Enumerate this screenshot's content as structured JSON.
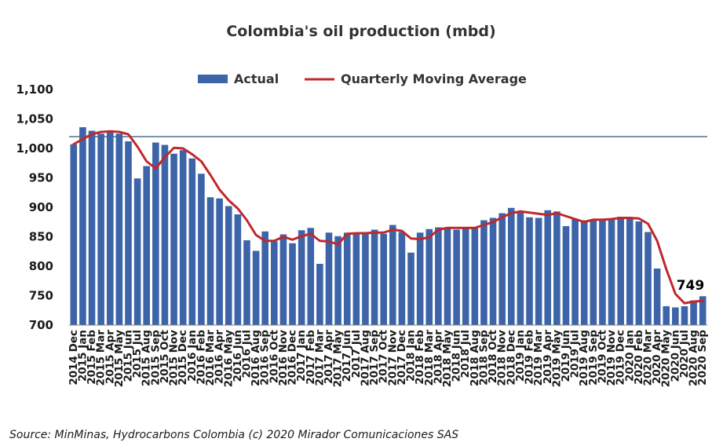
{
  "chart_data": {
    "type": "bar",
    "title": "Colombia's oil production (mbd)",
    "xlabel": "",
    "ylabel": "",
    "ylim": [
      700,
      1100
    ],
    "yticks": [
      700,
      750,
      800,
      850,
      900,
      950,
      1000,
      1050,
      1100
    ],
    "ytick_labels": [
      "700",
      "750",
      "800",
      "850",
      "900",
      "950",
      "1,000",
      "1,050",
      "1,100"
    ],
    "grid": false,
    "reference_line": 1020,
    "legend_position": "top-center",
    "categories": [
      "2014 Dec",
      "2015 Jan",
      "2015 Feb",
      "2015 Mar",
      "2015 Apr",
      "2015 May",
      "2015 Jun",
      "2015 Jul",
      "2015 Aug",
      "2015 Sep",
      "2015 Oct",
      "2015 Nov",
      "2015 Dec",
      "2016 Jan",
      "2016 Feb",
      "2016 Mar",
      "2016 Apr",
      "2016 May",
      "2016 Jun",
      "2016 Jul",
      "2016 Aug",
      "2016 Sep",
      "2016 Oct",
      "2016 Nov",
      "2016 Dec",
      "2017 Jan",
      "2017 Feb",
      "2017 Mar",
      "2017 Apr",
      "2017 May",
      "2017 Jun",
      "2017 Jul",
      "2017 Aug",
      "2017 Sep",
      "2017 Oct",
      "2017 Nov",
      "2017 Dec",
      "2018 Jan",
      "2018 Feb",
      "2018 Mar",
      "2018 Apr",
      "2018 May",
      "2018 Jun",
      "2018 Jul",
      "2018 Aug",
      "2018 Sep",
      "2018 Oct",
      "2018 Nov",
      "2018 Dec",
      "2019 Jan",
      "2019 Feb",
      "2019 Mar",
      "2019 Apr",
      "2019 May",
      "2019 Jun",
      "2019 Jul",
      "2019 Aug",
      "2019 Sep",
      "2019 Oct",
      "2019 Nov",
      "2019 Dec",
      "2020 Jan",
      "2020 Feb",
      "2020 Mar",
      "2020 Apr",
      "2020 May",
      "2020 Jun",
      "2020 Jul",
      "2020 Aug",
      "2020 Sep"
    ],
    "series": [
      {
        "name": "Actual",
        "type": "bar",
        "color": "#3d64a8",
        "values": [
          1007,
          1036,
          1030,
          1025,
          1029,
          1025,
          1012,
          949,
          970,
          1010,
          1006,
          991,
          997,
          983,
          957,
          917,
          915,
          902,
          888,
          844,
          826,
          859,
          842,
          854,
          839,
          861,
          865,
          804,
          857,
          851,
          857,
          856,
          857,
          862,
          855,
          870,
          858,
          823,
          857,
          863,
          866,
          866,
          862,
          866,
          866,
          878,
          882,
          890,
          899,
          891,
          883,
          882,
          895,
          893,
          868,
          880,
          878,
          880,
          880,
          881,
          884,
          880,
          876,
          858,
          796,
          732,
          730,
          732,
          742,
          749
        ]
      },
      {
        "name": "Quarterly Moving Average",
        "type": "line",
        "color": "#c0282d",
        "values": [
          1007,
          1016,
          1024,
          1028,
          1029,
          1028,
          1024,
          1003,
          978,
          966,
          985,
          1001,
          1000,
          990,
          978,
          955,
          930,
          912,
          898,
          878,
          853,
          843,
          843,
          850,
          845,
          851,
          855,
          843,
          842,
          837,
          855,
          856,
          856,
          857,
          857,
          862,
          860,
          847,
          846,
          849,
          862,
          865,
          865,
          865,
          865,
          870,
          875,
          883,
          890,
          893,
          891,
          889,
          887,
          890,
          885,
          880,
          875,
          879,
          879,
          880,
          882,
          882,
          881,
          872,
          843,
          795,
          753,
          737,
          740,
          741
        ]
      }
    ],
    "annotations": [
      {
        "text": "749",
        "category": "2020 Sep",
        "value": 749
      }
    ],
    "source": "Source: MinMinas, Hydrocarbons Colombia (c) 2020 Mirador Comunicaciones SAS"
  }
}
